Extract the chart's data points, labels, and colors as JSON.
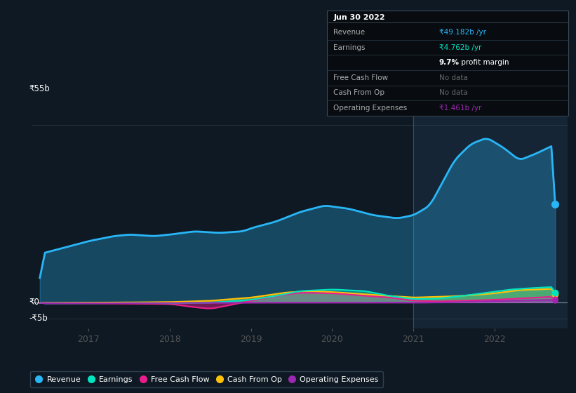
{
  "bg_color": "#0e1923",
  "plot_bg_color": "#0e1923",
  "highlight_bg": "#112233",
  "title_text": "Jun 30 2022",
  "tooltip": {
    "Revenue": "₹49.182b /yr",
    "Earnings": "₹4.762b /yr",
    "profit_margin_pct": "9.7%",
    "profit_margin_label": " profit margin",
    "Free_Cash_Flow": "No data",
    "Cash_From_Op": "No data",
    "Operating_Expenses": "₹1.461b /yr"
  },
  "ylabel_top": "₹55b",
  "ylabel_zero": "₹0",
  "ylabel_neg": "-₹5b",
  "x_ticks": [
    2017,
    2018,
    2019,
    2020,
    2021,
    2022
  ],
  "colors": {
    "revenue": "#29b6f6",
    "earnings": "#00e5c0",
    "free_cash_flow": "#e91e8c",
    "cash_from_op": "#ffc107",
    "operating_expenses": "#9c27b0"
  },
  "legend": [
    "Revenue",
    "Earnings",
    "Free Cash Flow",
    "Cash From Op",
    "Operating Expenses"
  ],
  "ylim": [
    -8,
    62
  ],
  "xlim": [
    2016.3,
    2022.9
  ]
}
